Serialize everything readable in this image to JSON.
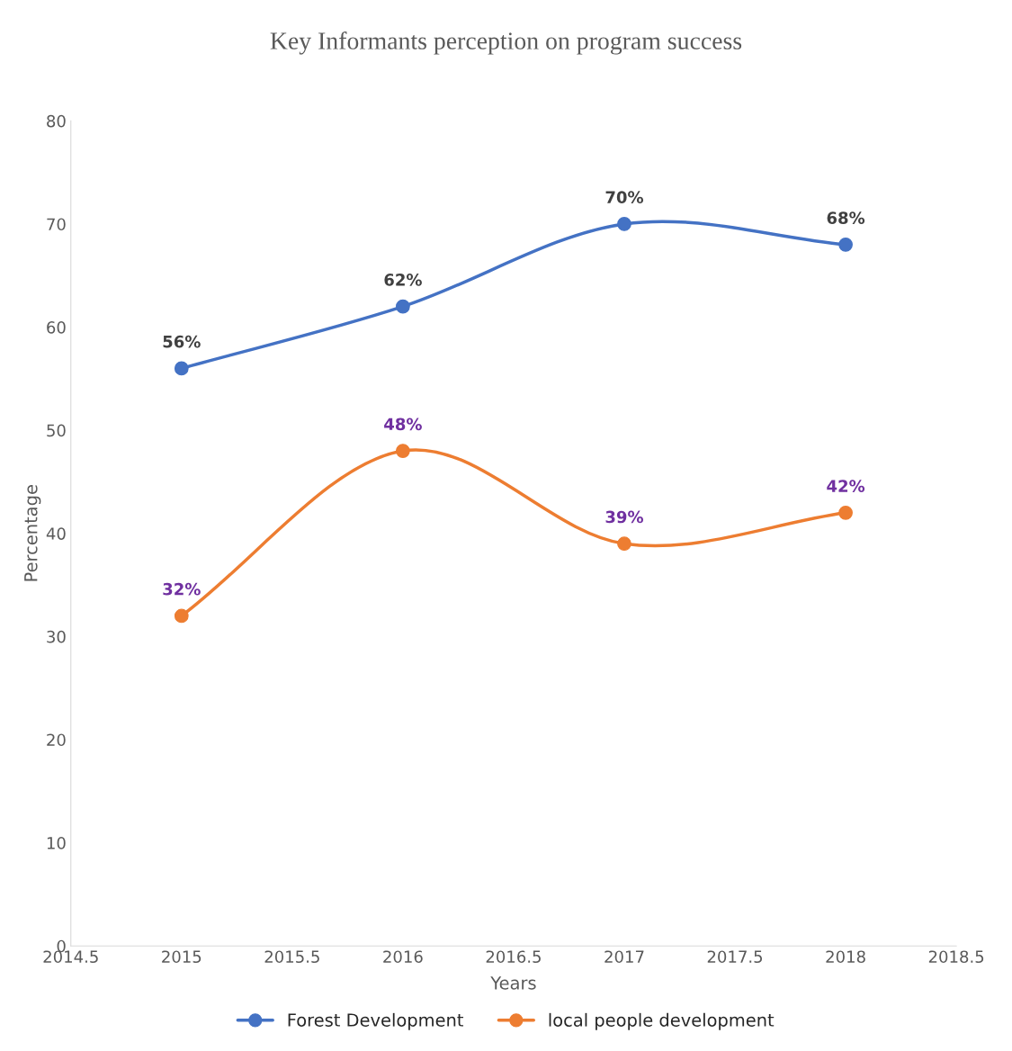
{
  "chart_data": {
    "type": "line",
    "title": "Key Informants perception on program success",
    "xlabel": "Years",
    "ylabel": "Percentage",
    "x": [
      2015,
      2016,
      2017,
      2018
    ],
    "series": [
      {
        "name": "Forest Development",
        "color": "#4472c4",
        "values": [
          56,
          62,
          70,
          68
        ],
        "value_labels": [
          "56%",
          "62%",
          "70%",
          "68%"
        ]
      },
      {
        "name": "local people development",
        "color": "#ed7d31",
        "values": [
          32,
          48,
          39,
          42
        ],
        "value_labels": [
          "32%",
          "48%",
          "39%",
          "42%"
        ]
      }
    ],
    "xlim": [
      2014.5,
      2018.5
    ],
    "xticks": [
      2014.5,
      2015,
      2015.5,
      2016,
      2016.5,
      2017,
      2017.5,
      2018,
      2018.5
    ],
    "ylim": [
      0,
      80
    ],
    "yticks": [
      0,
      10,
      20,
      30,
      40,
      50,
      60,
      70,
      80
    ],
    "marker": "circle",
    "line_style": "solid",
    "grid": false,
    "legend": "bottom"
  }
}
